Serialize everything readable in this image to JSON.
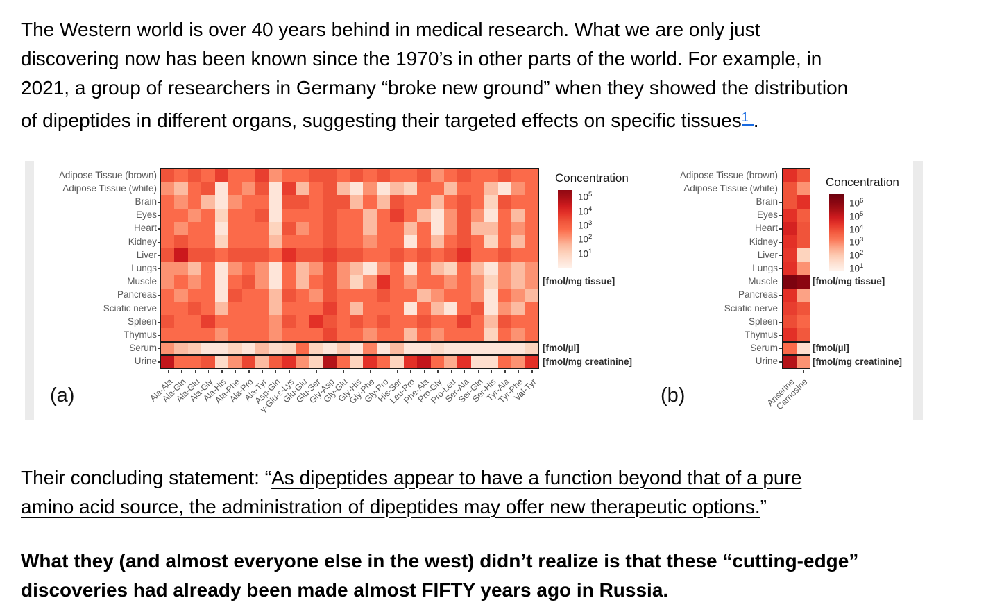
{
  "p1": {
    "lines": [
      "The Western world is over 40 years behind in medical research. What we are only just",
      "discovering now has been known since the 1970’s in other parts of the world. For example, in",
      "2021, a group of researchers in Germany “broke new ground” when they showed the distribution",
      "of dipeptides in different organs, suggesting their targeted effects on specific tissues"
    ],
    "footnote": "1",
    "after_footnote": "."
  },
  "p2": {
    "prefix": "Their concluding statement: “",
    "underline_line1": "As dipeptides appear to have a function beyond that of a pure",
    "underline_line2": "amino acid source, the administration of dipeptides may offer new therapeutic options.",
    "suffix": "”"
  },
  "p3": {
    "lines": [
      "What they (and almost everyone else in the west) didn’t realize is that these “cutting-edge”",
      "discoveries had already been made almost FIFTY years ago in Russia."
    ]
  },
  "figure": {
    "panel_a_label": "(a)",
    "panel_b_label": "(b)",
    "legend_title": "Concentration",
    "units": {
      "tissue": "[fmol/mg tissue]",
      "serum": "[fmol/µl]",
      "urine": "[fmol/mg creatinine]"
    },
    "colormap": {
      "low": "#fff5f0",
      "mid": "#fb6a4a",
      "high": "#67000d"
    }
  },
  "chart_data": [
    {
      "type": "heatmap",
      "panel": "a",
      "legend_title": "Concentration",
      "legend_ticks": [
        "10^5",
        "10^4",
        "10^3",
        "10^2",
        "10^1"
      ],
      "unit_tissue_rows": "[fmol/mg tissue]",
      "unit_serum_row": "[fmol/µl]",
      "unit_urine_row": "[fmol/mg creatinine]",
      "scale": "log10 concentration, estimated from cell color",
      "rows": [
        "Adipose Tissue (brown)",
        "Adipose Tissue (white)",
        "Brain",
        "Eyes",
        "Heart",
        "Kidney",
        "Liver",
        "Lungs",
        "Muscle",
        "Pancreas",
        "Sciatic nerve",
        "Spleen",
        "Thymus",
        "Serum",
        "Urine"
      ],
      "columns": [
        "Ala-Ala",
        "Ala-Gln",
        "Ala-Glu",
        "Ala-Gly",
        "Ala-His",
        "Ala-Phe",
        "Ala-Pro",
        "Ala-Tyr",
        "Asp-Gln",
        "γ-Glu-ε-Lys",
        "Glu-Glu",
        "Glu-Ser",
        "Gly-Asp",
        "Gly-Glu",
        "Gly-His",
        "Gly-Phe",
        "Gly-Pro",
        "His-Ser",
        "Leu-Pro",
        "Phe-Ala",
        "Pro-Gly",
        "Pro-Leu",
        "Ser-Ala",
        "Ser-Gln",
        "Ser-His",
        "Tyr-Ala",
        "Tyr-Phe",
        "Val-Tyr"
      ],
      "values_log10": [
        [
          3.5,
          3,
          3.5,
          3,
          3.8,
          3,
          3,
          3.8,
          2.5,
          3,
          3,
          3.5,
          3.5,
          3,
          3.5,
          3,
          3.5,
          3,
          3,
          3.5,
          2.5,
          3,
          3.5,
          3,
          3,
          3.5,
          3,
          3
        ],
        [
          2.5,
          2,
          3,
          3.5,
          1,
          3,
          2.5,
          3.5,
          1,
          3.8,
          2,
          3,
          3.5,
          2,
          1,
          2.5,
          1,
          2,
          1.5,
          3,
          3,
          2,
          3,
          3,
          2,
          1,
          2.5,
          3
        ],
        [
          3,
          2.5,
          3,
          2,
          1,
          2.5,
          3,
          3,
          1,
          3.5,
          3.5,
          3,
          3.5,
          3.5,
          2,
          3,
          2,
          3.5,
          3,
          3,
          2,
          3,
          3.5,
          3,
          1.5,
          3.5,
          3,
          3
        ],
        [
          3,
          3,
          2.5,
          3,
          1.5,
          3,
          3,
          3.5,
          1,
          3,
          3,
          3,
          3.5,
          3,
          3,
          2,
          3,
          3.8,
          3,
          2,
          1,
          2.5,
          3.5,
          2.5,
          1,
          3,
          2,
          3
        ],
        [
          3,
          2.5,
          3,
          3,
          1,
          3,
          3,
          3,
          1.5,
          3.5,
          2.5,
          3,
          3.5,
          3,
          3,
          2,
          3,
          3,
          2,
          3,
          1,
          2.5,
          3.5,
          2,
          2,
          3,
          2.5,
          3
        ],
        [
          3,
          3.5,
          3,
          3,
          1.5,
          3,
          3,
          3,
          2,
          3,
          3,
          3,
          3.5,
          3,
          3,
          2.5,
          3,
          3,
          1,
          3,
          2,
          3,
          3.5,
          3,
          1.5,
          3,
          2,
          3
        ],
        [
          3.5,
          4.5,
          3.5,
          3.5,
          3,
          3.5,
          3.5,
          3.5,
          3,
          4,
          3.5,
          3.5,
          3.8,
          3.5,
          3.5,
          3,
          3,
          3.5,
          3,
          3.5,
          3,
          3.5,
          4,
          3,
          3,
          3.5,
          3,
          3
        ],
        [
          2.5,
          2.5,
          2,
          3,
          1,
          2.5,
          3,
          2.5,
          1,
          3,
          2,
          2.5,
          3.5,
          2.5,
          2,
          1,
          2.5,
          3,
          1,
          3,
          2,
          1.5,
          3,
          2,
          1,
          2.5,
          2,
          2.5
        ],
        [
          2.5,
          3,
          2.5,
          3,
          1,
          3,
          3.5,
          2.5,
          1,
          3,
          2,
          3,
          3.5,
          2.5,
          1.5,
          2.5,
          4,
          3,
          2.5,
          3,
          3,
          2.5,
          3,
          2.5,
          1.5,
          2.5,
          2,
          2.5
        ],
        [
          3,
          2.5,
          3,
          3,
          1,
          3.5,
          3,
          3,
          2,
          3.5,
          3,
          2.5,
          3.5,
          3,
          3,
          3,
          3.5,
          3,
          3,
          2,
          2.5,
          3,
          3,
          2.5,
          1,
          3,
          2.5,
          2
        ],
        [
          3,
          3,
          3.5,
          3,
          2,
          3,
          3,
          3,
          2,
          3,
          3,
          3,
          3.8,
          3,
          2,
          3,
          3,
          3,
          1,
          3,
          2,
          1,
          3,
          3.5,
          1,
          2.5,
          2,
          3
        ],
        [
          3.5,
          3,
          3,
          3.8,
          3,
          3,
          3,
          3,
          2.5,
          3.5,
          3,
          4,
          3.5,
          3,
          3.5,
          3,
          3.5,
          3,
          3,
          3.5,
          3,
          3,
          3.8,
          3,
          2,
          3.5,
          3,
          3
        ],
        [
          3,
          3,
          3,
          3,
          2.5,
          3,
          3,
          3,
          2.5,
          3,
          3,
          3,
          3.7,
          3,
          3,
          2.5,
          3,
          3,
          2,
          3,
          2.5,
          3,
          3,
          3,
          1.5,
          3,
          2.5,
          3
        ],
        [
          2.5,
          2,
          1.7,
          1,
          1,
          1.5,
          1,
          2,
          1.3,
          1.5,
          3,
          1.5,
          1,
          1.7,
          1,
          2.7,
          1,
          2,
          1,
          1,
          1.3,
          1,
          1,
          1,
          1,
          1,
          1,
          1.5
        ],
        [
          4.6,
          3,
          3,
          3.5,
          1.3,
          2.5,
          3.7,
          2,
          3.3,
          4,
          2.5,
          1.5,
          4.8,
          3,
          1.5,
          4,
          3,
          1.5,
          4,
          4.6,
          3,
          2.2,
          4,
          1.2,
          1.2,
          3,
          2.5,
          4
        ]
      ]
    },
    {
      "type": "heatmap",
      "panel": "b",
      "legend_title": "Concentration",
      "legend_ticks": [
        "10^6",
        "10^5",
        "10^4",
        "10^3",
        "10^2",
        "10^1"
      ],
      "unit_tissue_rows": "[fmol/mg tissue]",
      "unit_serum_row": "[fmol/µl]",
      "unit_urine_row": "[fmol/mg creatinine]",
      "scale": "log10 concentration, estimated from cell color",
      "rows": [
        "Adipose Tissue (brown)",
        "Adipose Tissue (white)",
        "Brain",
        "Eyes",
        "Heart",
        "Kidney",
        "Liver",
        "Lungs",
        "Muscle",
        "Pancreas",
        "Sciatic nerve",
        "Spleen",
        "Thymus",
        "Serum",
        "Urine"
      ],
      "columns": [
        "Anserine",
        "Carnosine"
      ],
      "values_log10": [
        [
          4,
          3.5
        ],
        [
          3.5,
          2.5
        ],
        [
          3.5,
          4
        ],
        [
          4,
          3.3
        ],
        [
          4.3,
          3.5
        ],
        [
          4,
          3.5
        ],
        [
          3.9,
          1.5
        ],
        [
          4,
          2.5
        ],
        [
          5.8,
          5.5
        ],
        [
          4,
          2.3
        ],
        [
          3.8,
          3.5
        ],
        [
          3.6,
          3.1
        ],
        [
          4,
          3.4
        ],
        [
          3,
          1.2
        ],
        [
          4.8,
          2.5
        ]
      ]
    }
  ]
}
